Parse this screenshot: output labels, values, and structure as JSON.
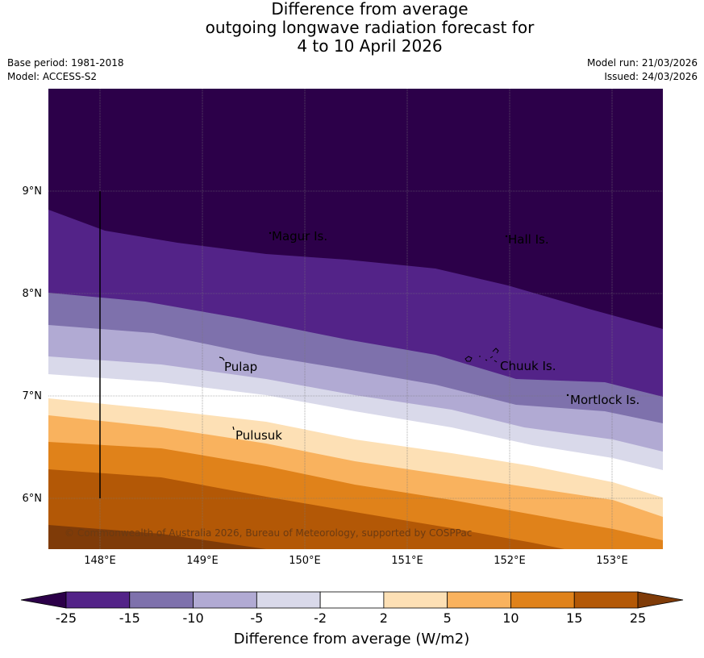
{
  "header": {
    "title_line1": "Difference from average",
    "title_line2": "outgoing longwave radiation forecast for",
    "title_line3": "4 to 10 April 2026",
    "base_period": "Base period: 1981-2018",
    "model": "Model: ACCESS-S2",
    "model_run": "Model run: 21/03/2026",
    "issued": "Issued: 24/03/2026"
  },
  "map": {
    "lat_labels": [
      "9°N",
      "8°N",
      "7°N",
      "6°N"
    ],
    "lon_labels": [
      "148°E",
      "149°E",
      "150°E",
      "151°E",
      "152°E",
      "153°E"
    ],
    "places": [
      "Magur Is.",
      "Hall Is.",
      "Pulap",
      "Chuuk Is.",
      "Mortlock Is.",
      "Pulusuk"
    ],
    "copyright": "© Commonwealth of Australia 2026, Bureau of Meteorology, supported by COSPPac"
  },
  "colorbar": {
    "ticks": [
      "-25",
      "-15",
      "-10",
      "-5",
      "-2",
      "2",
      "5",
      "10",
      "15",
      "25"
    ],
    "colors": [
      "#2c0049",
      "#532388",
      "#7e71ac",
      "#b1aad3",
      "#d9d9ea",
      "#ffffff",
      "#fde0b5",
      "#f9b25e",
      "#e0821a",
      "#b35806",
      "#7f3b08"
    ],
    "label": "Difference from average (W/m2)"
  }
}
